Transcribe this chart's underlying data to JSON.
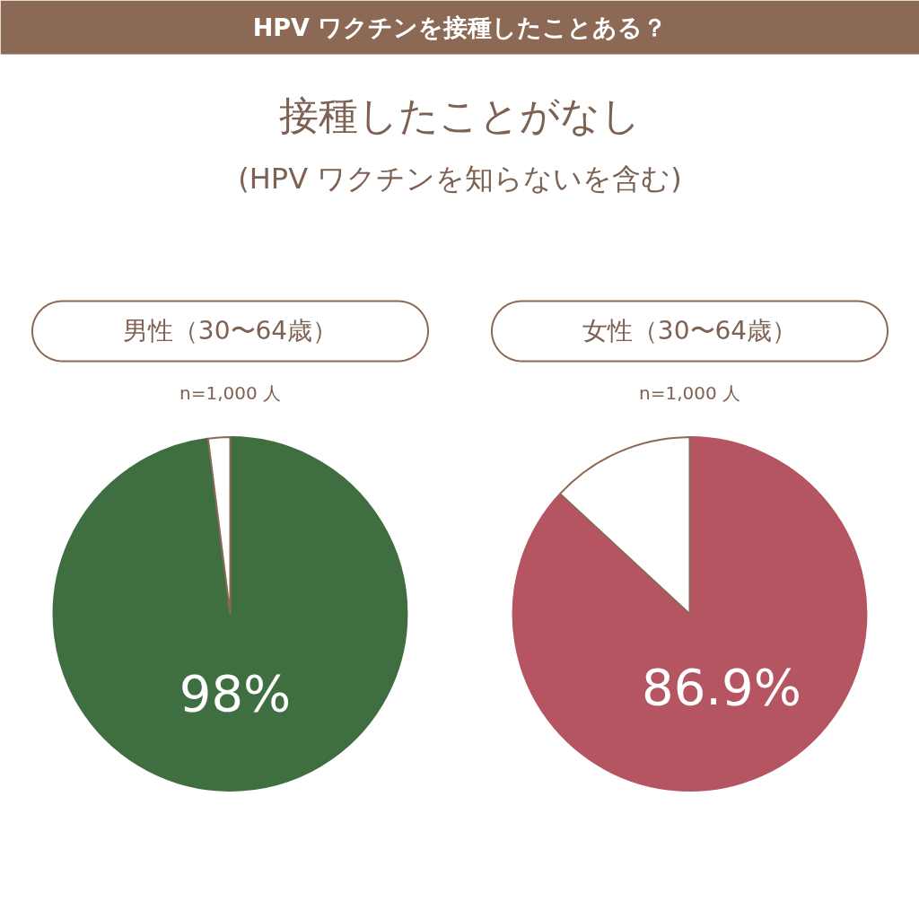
{
  "chart_data": [
    {
      "type": "pie",
      "title": "男性（30〜64歳）",
      "subtitle": "n=1,000 人",
      "annotations": [
        "HPV ワクチンを接種したことある？",
        "接種したことがなし",
        "(HPV ワクチンを知らないを含む)"
      ],
      "categories": [
        null,
        null
      ],
      "values": [
        98,
        2
      ],
      "colors": [
        "#3f6e40",
        "#ffffff"
      ],
      "value_labels": [
        "98%",
        null
      ]
    },
    {
      "type": "pie",
      "title": "女性（30〜64歳）",
      "subtitle": "n=1,000 人",
      "categories": [
        null,
        null
      ],
      "values": [
        86.9,
        13.1
      ],
      "colors": [
        "#b55562",
        "#ffffff"
      ],
      "value_labels": [
        "86.9%",
        null
      ]
    }
  ]
}
